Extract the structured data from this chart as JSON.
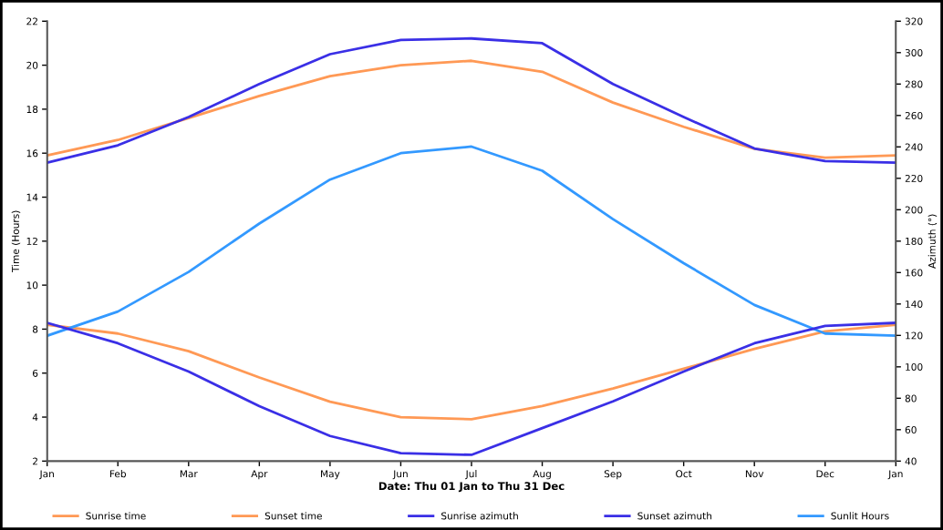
{
  "chart_data": {
    "type": "line",
    "xlabel": "Date: Thu 01 Jan to Thu 31 Dec",
    "ylabel": "Time (Hours)",
    "y2label": "Azimuth (°)",
    "categories": [
      "Jan",
      "Feb",
      "Mar",
      "Apr",
      "May",
      "Jun",
      "Jul",
      "Aug",
      "Sep",
      "Oct",
      "Nov",
      "Dec",
      "Jan"
    ],
    "series": [
      {
        "name": "Sunrise time",
        "color": "#ff9955",
        "values": [
          8.2,
          7.8,
          7.0,
          5.8,
          4.7,
          4.0,
          3.9,
          4.5,
          5.3,
          6.2,
          7.1,
          7.9,
          8.2
        ]
      },
      {
        "name": "Sunset time",
        "color": "#ff9955",
        "values": [
          15.9,
          16.6,
          17.6,
          18.6,
          19.5,
          20.0,
          20.2,
          19.7,
          18.3,
          17.2,
          16.2,
          15.8,
          15.9
        ]
      },
      {
        "name": "Sunrise azimuth",
        "color": "#3a2fe6",
        "axis": "y2",
        "values": [
          128,
          115,
          97,
          75,
          56,
          45,
          44,
          61,
          78,
          97,
          115,
          126,
          128
        ]
      },
      {
        "name": "Sunset azimuth",
        "color": "#3a2fe6",
        "axis": "y2",
        "values": [
          230,
          241,
          259,
          280,
          299,
          308,
          309,
          306,
          280,
          259,
          239,
          231,
          230
        ]
      },
      {
        "name": "Sunlit Hours",
        "color": "#3399ff",
        "values": [
          7.7,
          8.8,
          10.6,
          12.8,
          14.8,
          16.0,
          16.3,
          15.2,
          13.0,
          11.0,
          9.1,
          7.8,
          7.7
        ]
      }
    ],
    "ylim": [
      2,
      22
    ],
    "yticks": [
      2,
      4,
      6,
      8,
      10,
      12,
      14,
      16,
      18,
      20,
      22
    ],
    "y2lim": [
      40,
      320
    ],
    "y2ticks": [
      40,
      60,
      80,
      100,
      120,
      140,
      160,
      180,
      200,
      220,
      240,
      260,
      280,
      300,
      320
    ],
    "grid": false,
    "legend": "bottom",
    "marker": "none",
    "line_style": "solid"
  }
}
